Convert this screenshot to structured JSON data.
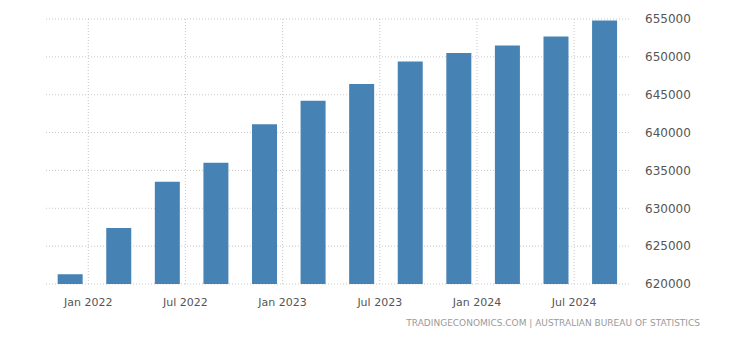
{
  "chart_data": {
    "type": "bar",
    "categories": [
      "Jan 2022",
      null,
      "Jul 2022",
      null,
      "Jan 2023",
      null,
      "Jul 2023",
      null,
      "Jan 2024",
      null,
      "Jul 2024",
      null
    ],
    "values": [
      621300,
      627400,
      633500,
      636000,
      641100,
      644200,
      646400,
      649400,
      650500,
      651500,
      652700,
      654800
    ],
    "color": "#4682b4",
    "ylim": [
      620000,
      655000
    ],
    "yticks": [
      620000,
      625000,
      630000,
      635000,
      640000,
      645000,
      650000,
      655000
    ],
    "grid": true,
    "annotations": [
      "TRADINGECONOMICS.COM | AUSTRALIAN BUREAU OF STATISTICS"
    ]
  }
}
